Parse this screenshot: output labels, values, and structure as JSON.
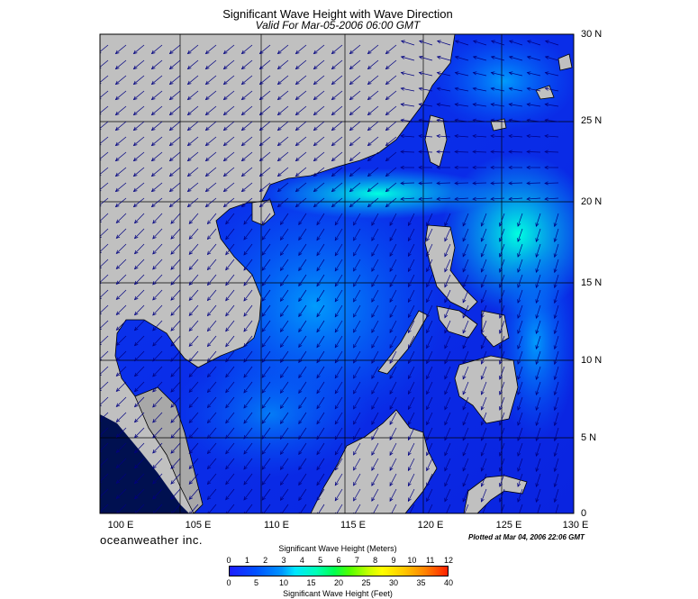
{
  "title": "Significant Wave Height with Wave Direction",
  "subtitle": "Valid For Mar-05-2006 06:00 GMT",
  "lat_labels": [
    "30 N",
    "25 N",
    "20 N",
    "15 N",
    "10 N",
    "5 N",
    "0"
  ],
  "lon_labels": [
    "100 E",
    "105 E",
    "110 E",
    "115 E",
    "120 E",
    "125 E",
    "130 E"
  ],
  "brand": "oceanweather inc.",
  "plotted": "Plotted at Mar 04, 2006 22:06 GMT",
  "colorbar": {
    "title_m": "Significant Wave Height (Meters)",
    "title_ft": "Significant Wave Height (Feet)",
    "meters": [
      "0",
      "1",
      "2",
      "3",
      "4",
      "5",
      "6",
      "7",
      "8",
      "9",
      "10",
      "11",
      "12"
    ],
    "feet": [
      "0",
      "5",
      "10",
      "15",
      "20",
      "25",
      "30",
      "35",
      "40"
    ]
  },
  "colors": {
    "land": "#c0c0c0",
    "sea_low": "#0a2ee6",
    "sea_mid": "#0090ff",
    "sea_high": "#00ffd8",
    "arrow": "#000080"
  }
}
